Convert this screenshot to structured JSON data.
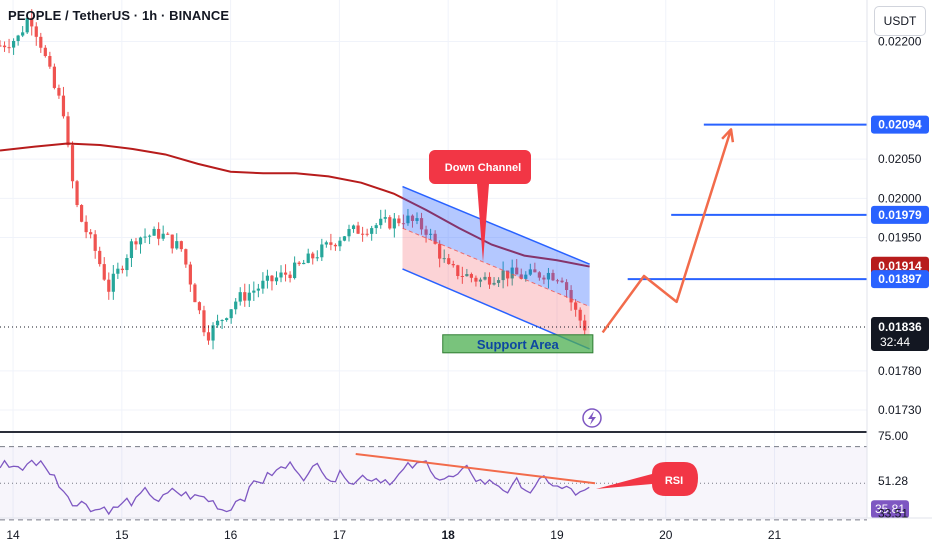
{
  "header": {
    "title": "PEOPLE / TetherUS · 1h · BINANCE",
    "currency": "USDT"
  },
  "colors": {
    "up": "#26a69a",
    "down": "#ef5350",
    "ma": "#b71c1c",
    "channel": "#2962ff",
    "arrow": "#f26b4b",
    "label": "#f23645",
    "support": "#4caf50",
    "rsi": "#7e57c2"
  },
  "chart_data": [
    {
      "type": "candlestick",
      "title": "PEOPLE / TetherUS · 1h · BINANCE",
      "x_ticks": [
        {
          "x": 14,
          "label": "14"
        },
        {
          "x": 15,
          "label": "15"
        },
        {
          "x": 16,
          "label": "16"
        },
        {
          "x": 17,
          "label": "17"
        },
        {
          "x": 18,
          "label": "18"
        },
        {
          "x": 19,
          "label": "19"
        },
        {
          "x": 20,
          "label": "20"
        },
        {
          "x": 21,
          "label": "21"
        }
      ],
      "xlim": [
        13.88,
        21.85
      ],
      "ylim": [
        0.01702,
        0.02253
      ],
      "y_ticks": [
        {
          "v": 0.022,
          "label": "0.02200"
        },
        {
          "v": 0.0205,
          "label": "0.02050"
        },
        {
          "v": 0.02,
          "label": "0.02000"
        },
        {
          "v": 0.0195,
          "label": "0.01950"
        },
        {
          "v": 0.0178,
          "label": "0.01780"
        },
        {
          "v": 0.0173,
          "label": "0.01730"
        }
      ],
      "price_labels": [
        {
          "v": 0.02094,
          "label": "0.02094",
          "color": "#2962ff"
        },
        {
          "v": 0.01979,
          "label": "0.01979",
          "color": "#2962ff"
        },
        {
          "v": 0.01914,
          "label": "0.01914",
          "color": "#b71c1c"
        },
        {
          "v": 0.01897,
          "label": "0.01897",
          "color": "#2962ff"
        }
      ],
      "last_price": {
        "v": 0.01836,
        "label": "0.01836",
        "countdown": "32:44"
      },
      "moving_average": [
        {
          "x": 13.88,
          "y": 0.02061
        },
        {
          "x": 14.2,
          "y": 0.02066
        },
        {
          "x": 14.5,
          "y": 0.0207
        },
        {
          "x": 14.8,
          "y": 0.02068
        },
        {
          "x": 15.1,
          "y": 0.02063
        },
        {
          "x": 15.4,
          "y": 0.02056
        },
        {
          "x": 15.7,
          "y": 0.02044
        },
        {
          "x": 16.0,
          "y": 0.02034
        },
        {
          "x": 16.3,
          "y": 0.02032
        },
        {
          "x": 16.6,
          "y": 0.02032
        },
        {
          "x": 16.9,
          "y": 0.02028
        },
        {
          "x": 17.2,
          "y": 0.0202
        },
        {
          "x": 17.5,
          "y": 0.02006
        },
        {
          "x": 17.8,
          "y": 0.01985
        },
        {
          "x": 18.1,
          "y": 0.01962
        },
        {
          "x": 18.4,
          "y": 0.01941
        },
        {
          "x": 18.7,
          "y": 0.01927
        },
        {
          "x": 19.0,
          "y": 0.01921
        },
        {
          "x": 19.3,
          "y": 0.01913
        }
      ],
      "down_channel": {
        "upper": [
          {
            "x": 17.58,
            "y": 0.02015
          },
          {
            "x": 19.3,
            "y": 0.01916
          }
        ],
        "lower": [
          {
            "x": 17.58,
            "y": 0.0191
          },
          {
            "x": 19.3,
            "y": 0.01808
          }
        ],
        "mid": [
          {
            "x": 17.58,
            "y": 0.01962
          },
          {
            "x": 19.3,
            "y": 0.01862
          }
        ]
      },
      "horizontal_levels": [
        {
          "y": 0.02094,
          "x0": 20.35,
          "x1": 21.85
        },
        {
          "y": 0.01979,
          "x0": 20.05,
          "x1": 21.85
        },
        {
          "y": 0.01897,
          "x0": 19.65,
          "x1": 21.85
        }
      ],
      "projection_path": [
        {
          "x": 19.42,
          "y": 0.01829
        },
        {
          "x": 19.8,
          "y": 0.01901
        },
        {
          "x": 20.1,
          "y": 0.01868
        },
        {
          "x": 20.6,
          "y": 0.02088
        }
      ],
      "support_area": {
        "label": "Support Area",
        "x0": 17.95,
        "x1": 19.33,
        "y0": 0.01803,
        "y1": 0.01826
      },
      "callouts": [
        {
          "label": "Down Channel"
        },
        {
          "label": "RSI"
        }
      ]
    },
    {
      "type": "line",
      "title": "RSI",
      "xlim": [
        13.88,
        21.85
      ],
      "ylim": [
        31.0,
        78.0
      ],
      "y_labels": [
        {
          "v": 75.0,
          "label": "75.00"
        },
        {
          "v": 51.28,
          "label": "51.28"
        },
        {
          "v": 35.81,
          "label": "35.81"
        },
        {
          "v": 33.51,
          "label": "33.51"
        }
      ],
      "levels": [
        70,
        50,
        30
      ],
      "divergence_line": [
        {
          "x": 17.15,
          "y": 66
        },
        {
          "x": 19.35,
          "y": 50
        }
      ]
    }
  ]
}
